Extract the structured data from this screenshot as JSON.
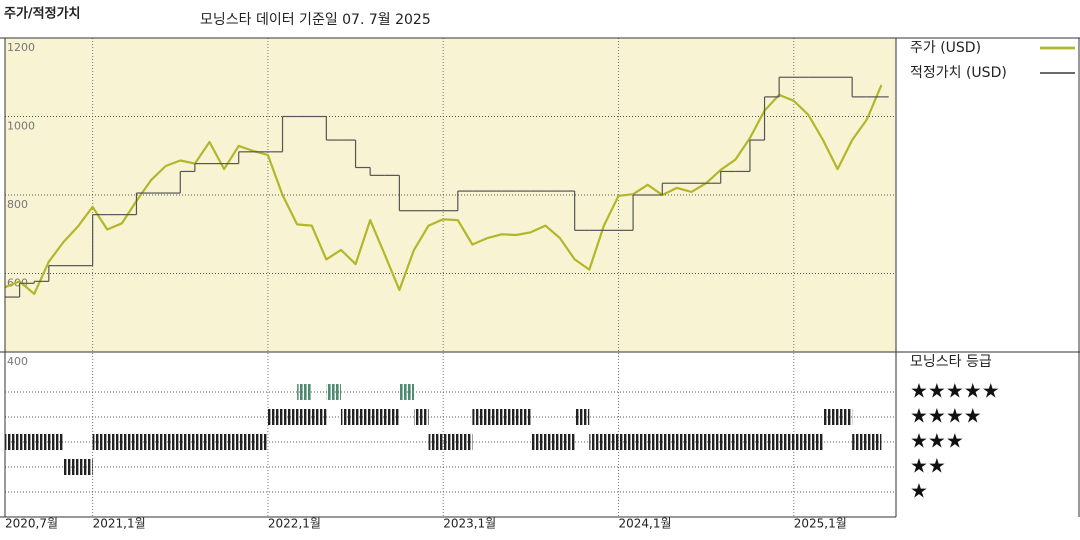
{
  "chart_data": [
    {
      "type": "line",
      "title": "주가/적정가치",
      "subtitle": "모닝스타 데이터 기준일 07. 7월 2025",
      "x": [
        "2020-07",
        "2020-08",
        "2020-09",
        "2020-10",
        "2020-11",
        "2020-12",
        "2021-01",
        "2021-02",
        "2021-03",
        "2021-04",
        "2021-05",
        "2021-06",
        "2021-07",
        "2021-08",
        "2021-09",
        "2021-10",
        "2021-11",
        "2021-12",
        "2022-01",
        "2022-02",
        "2022-03",
        "2022-04",
        "2022-05",
        "2022-06",
        "2022-07",
        "2022-08",
        "2022-09",
        "2022-10",
        "2022-11",
        "2022-12",
        "2023-01",
        "2023-02",
        "2023-03",
        "2023-04",
        "2023-05",
        "2023-06",
        "2023-07",
        "2023-08",
        "2023-09",
        "2023-10",
        "2023-11",
        "2023-12",
        "2024-01",
        "2024-02",
        "2024-03",
        "2024-04",
        "2024-05",
        "2024-06",
        "2024-07",
        "2024-08",
        "2024-09",
        "2024-10",
        "2024-11",
        "2024-12",
        "2025-01",
        "2025-02",
        "2025-03",
        "2025-04",
        "2025-05",
        "2025-06",
        "2025-07"
      ],
      "series": [
        {
          "name": "주가 (USD)",
          "color": "#b3b62b",
          "width": 2.2,
          "values": [
            565,
            580,
            548,
            630,
            680,
            720,
            770,
            712,
            728,
            785,
            838,
            874,
            888,
            880,
            935,
            866,
            925,
            912,
            902,
            800,
            725,
            722,
            636,
            660,
            624,
            736,
            648,
            558,
            660,
            722,
            738,
            736,
            674,
            690,
            700,
            698,
            705,
            722,
            690,
            636,
            610,
            722,
            798,
            802,
            826,
            800,
            818,
            808,
            830,
            864,
            890,
            945,
            1015,
            1055,
            1040,
            1004,
            940,
            866,
            940,
            992,
            1080
          ]
        },
        {
          "name": "적정가치 (USD)",
          "color": "#555555",
          "width": 1.2,
          "step": true,
          "values": [
            540,
            575,
            580,
            620,
            620,
            620,
            750,
            750,
            750,
            805,
            805,
            805,
            860,
            880,
            880,
            880,
            910,
            910,
            910,
            1000,
            1000,
            1000,
            940,
            940,
            870,
            850,
            850,
            760,
            760,
            760,
            760,
            810,
            810,
            810,
            810,
            810,
            810,
            810,
            810,
            710,
            710,
            710,
            710,
            800,
            800,
            830,
            830,
            830,
            830,
            860,
            860,
            940,
            1050,
            1100,
            1100,
            1100,
            1100,
            1100,
            1050,
            1050,
            1050
          ]
        }
      ],
      "xlim": [
        "2020-07",
        "2025-08"
      ],
      "xticks": [
        {
          "value": "2020-07",
          "label": "2020,7월"
        },
        {
          "value": "2021-01",
          "label": "2021,1월"
        },
        {
          "value": "2022-01",
          "label": "2022,1월"
        },
        {
          "value": "2023-01",
          "label": "2023,1월"
        },
        {
          "value": "2024-01",
          "label": "2024,1월"
        },
        {
          "value": "2025-01",
          "label": "2025,1월"
        }
      ],
      "ylim": [
        400,
        1200
      ],
      "yticks": [
        400,
        600,
        800,
        1000,
        1200
      ],
      "grid": true,
      "background": "#f8f4d3"
    },
    {
      "type": "rating",
      "title": "모닝스타 등급",
      "color": "#222222",
      "highlight_color": "#4e8a72",
      "ylim": [
        0,
        6.6
      ],
      "yticks": [
        {
          "value": 5,
          "label": "★★★★★"
        },
        {
          "value": 4,
          "label": "★★★★"
        },
        {
          "value": 3,
          "label": "★★★"
        },
        {
          "value": 2,
          "label": "★★"
        },
        {
          "value": 1,
          "label": "★"
        }
      ],
      "periods": [
        {
          "start": "2020-07",
          "end": "2020-11",
          "stars": 3
        },
        {
          "start": "2020-11",
          "end": "2021-01",
          "stars": 2
        },
        {
          "start": "2021-01",
          "end": "2022-01",
          "stars": 3
        },
        {
          "start": "2022-01",
          "end": "2022-05",
          "stars": 4
        },
        {
          "start": "2022-03",
          "end": "2022-04",
          "stars": 5
        },
        {
          "start": "2022-05",
          "end": "2022-06",
          "stars": 5
        },
        {
          "start": "2022-06",
          "end": "2022-10",
          "stars": 4
        },
        {
          "start": "2022-10",
          "end": "2022-11",
          "stars": 5
        },
        {
          "start": "2022-11",
          "end": "2022-12",
          "stars": 4
        },
        {
          "start": "2022-12",
          "end": "2023-03",
          "stars": 3
        },
        {
          "start": "2023-03",
          "end": "2023-07",
          "stars": 4
        },
        {
          "start": "2023-07",
          "end": "2023-10",
          "stars": 3
        },
        {
          "start": "2023-10",
          "end": "2023-11",
          "stars": 4
        },
        {
          "start": "2023-11",
          "end": "2025-03",
          "stars": 3
        },
        {
          "start": "2025-03",
          "end": "2025-05",
          "stars": 4
        },
        {
          "start": "2025-05",
          "end": "2025-07",
          "stars": 3
        }
      ]
    }
  ]
}
